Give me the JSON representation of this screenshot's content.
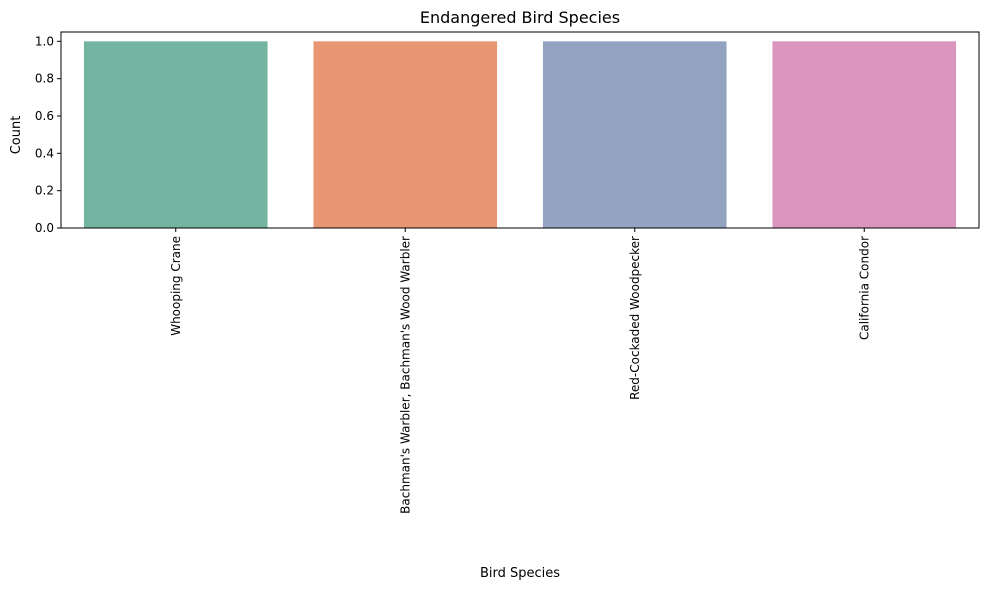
{
  "chart_data": {
    "type": "bar",
    "title": "Endangered Bird Species",
    "xlabel": "Bird Species",
    "ylabel": "Count",
    "categories": [
      "Whooping Crane",
      "Bachman's Warbler, Bachman's Wood Warbler",
      "Red-Cockaded Woodpecker",
      "California Condor"
    ],
    "values": [
      1,
      1,
      1,
      1
    ],
    "colors": [
      "#72b6a1",
      "#e99675",
      "#95a3c3",
      "#db96c0"
    ],
    "ylim": [
      0,
      1.05
    ],
    "yticks": [
      0.0,
      0.2,
      0.4,
      0.6,
      0.8,
      1.0
    ],
    "ytick_labels": [
      "0.0",
      "0.2",
      "0.4",
      "0.6",
      "0.8",
      "1.0"
    ],
    "grid": false,
    "legend": "none",
    "x_tick_rotation": 90
  }
}
